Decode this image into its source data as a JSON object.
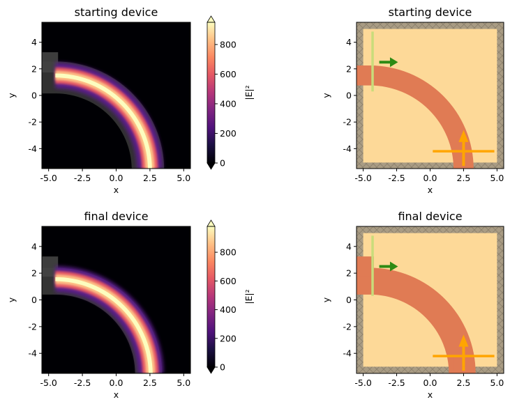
{
  "chart_data": [
    {
      "type": "heatmap",
      "title": "starting device",
      "xlabel": "x",
      "ylabel": "y",
      "xlim": [
        -5.5,
        5.5
      ],
      "ylim": [
        -5.5,
        5.5
      ],
      "xticks": [
        "-5.0",
        "-2.5",
        "0.0",
        "2.5",
        "5.0"
      ],
      "yticks": [
        "-4",
        "-2",
        "0",
        "2",
        "4"
      ],
      "colorbar": {
        "label": "|E|²",
        "ticks": [
          "0",
          "200",
          "400",
          "600",
          "800"
        ],
        "range": [
          0,
          950
        ],
        "colormap": "magma"
      },
      "device": {
        "input_waveguide_y": 2.5,
        "output_waveguide_x": 2.5,
        "bend_center": [
          -4.5,
          -5.5
        ],
        "bend_radius": 7.0,
        "width": 1.5
      }
    },
    {
      "type": "diagram",
      "title": "starting device",
      "xlabel": "x",
      "ylabel": "y",
      "xlim": [
        -5.5,
        5.5
      ],
      "ylim": [
        -5.5,
        5.5
      ],
      "xticks": [
        "-5.0",
        "-2.5",
        "0.0",
        "2.5",
        "5.0"
      ],
      "yticks": [
        "-4",
        "-2",
        "0",
        "2",
        "4"
      ],
      "source": {
        "x": -4.3,
        "y_range": [
          0.3,
          4.8
        ],
        "direction": "+x",
        "arrow_y": 2.5
      },
      "monitor": {
        "y": -4.2,
        "x_range": [
          0.2,
          4.8
        ],
        "direction": "+y",
        "arrow_x": 2.5
      }
    },
    {
      "type": "heatmap",
      "title": "final device",
      "xlabel": "x",
      "ylabel": "y",
      "xlim": [
        -5.5,
        5.5
      ],
      "ylim": [
        -5.5,
        5.5
      ],
      "xticks": [
        "-5.0",
        "-2.5",
        "0.0",
        "2.5",
        "5.0"
      ],
      "yticks": [
        "-4",
        "-2",
        "0",
        "2",
        "4"
      ],
      "colorbar": {
        "label": "|E|²",
        "ticks": [
          "0",
          "200",
          "400",
          "600",
          "800"
        ],
        "range": [
          0,
          980
        ],
        "colormap": "magma"
      }
    },
    {
      "type": "diagram",
      "title": "final device",
      "xlabel": "x",
      "ylabel": "y",
      "xlim": [
        -5.5,
        5.5
      ],
      "ylim": [
        -5.5,
        5.5
      ],
      "xticks": [
        "-5.0",
        "-2.5",
        "0.0",
        "2.5",
        "5.0"
      ],
      "yticks": [
        "-4",
        "-2",
        "0",
        "2",
        "4"
      ],
      "source": {
        "x": -4.3,
        "y_range": [
          0.3,
          4.8
        ],
        "direction": "+x",
        "arrow_y": 2.5
      },
      "monitor": {
        "y": -4.2,
        "x_range": [
          0.2,
          4.8
        ],
        "direction": "+y",
        "arrow_x": 2.5
      }
    }
  ],
  "colors": {
    "waveguide": "#e07b54",
    "design_region": "#fdd998",
    "pml": "#a99c84",
    "source_line": "#c9dc7a",
    "source_arrow": "#2e8b14",
    "monitor": "#ffa500",
    "heat_background": "#000004",
    "structure_overlay": "#3a3a3a"
  }
}
